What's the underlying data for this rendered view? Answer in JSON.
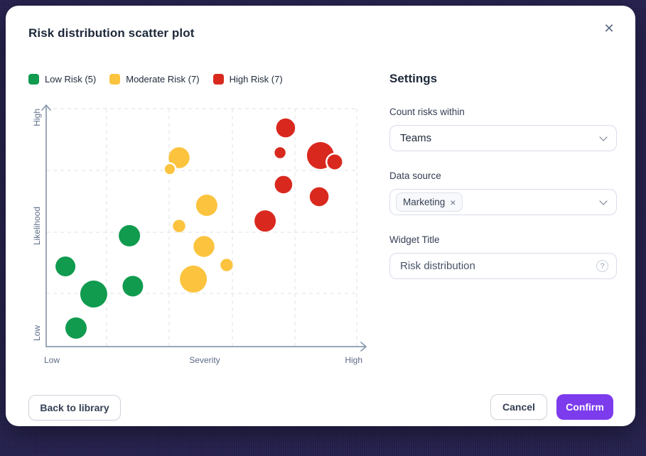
{
  "modal": {
    "title": "Risk distribution scatter plot",
    "close_icon": "✕"
  },
  "legend": [
    {
      "label": "Low Risk (5)",
      "color": "#109B4F"
    },
    {
      "label": "Moderate Risk (7)",
      "color": "#FBC33E"
    },
    {
      "label": "High Risk (7)",
      "color": "#D9291F"
    }
  ],
  "chart_data": {
    "type": "scatter",
    "title": "Risk distribution scatter plot",
    "xlabel": "Severity",
    "ylabel": "Likelihood",
    "x_axis": {
      "label": "Severity",
      "min_label": "Low",
      "max_label": "High",
      "range": [
        0,
        100
      ]
    },
    "y_axis": {
      "label": "Likelihood",
      "min_label": "Low",
      "max_label": "High",
      "range": [
        0,
        100
      ]
    },
    "grid": true,
    "legend_position": "top-left",
    "series": [
      {
        "name": "Low Risk",
        "count": 5,
        "color": "#109B4F",
        "points": [
          {
            "x": 26.8,
            "y": 46.6,
            "r": 15,
            "ring": false
          },
          {
            "x": 6.2,
            "y": 33.7,
            "r": 14,
            "ring": false
          },
          {
            "x": 15.3,
            "y": 22.1,
            "r": 19,
            "ring": false
          },
          {
            "x": 27.9,
            "y": 25.4,
            "r": 14.5,
            "ring": false
          },
          {
            "x": 9.6,
            "y": 7.8,
            "r": 15,
            "ring": false
          }
        ]
      },
      {
        "name": "Moderate Risk",
        "count": 7,
        "color": "#FBC33E",
        "points": [
          {
            "x": 42.8,
            "y": 79.4,
            "r": 14.7,
            "ring": false
          },
          {
            "x": 39.8,
            "y": 74.6,
            "r": 8.3,
            "ring": true
          },
          {
            "x": 51.7,
            "y": 59.4,
            "r": 15,
            "ring": false
          },
          {
            "x": 42.8,
            "y": 50.7,
            "r": 8.7,
            "ring": false
          },
          {
            "x": 50.8,
            "y": 42.1,
            "r": 14.7,
            "ring": false
          },
          {
            "x": 58.1,
            "y": 34.3,
            "r": 8.7,
            "ring": false
          },
          {
            "x": 47.4,
            "y": 28.4,
            "r": 19,
            "ring": false
          }
        ]
      },
      {
        "name": "High Risk",
        "count": 7,
        "color": "#D9291F",
        "points": [
          {
            "x": 77.1,
            "y": 91.9,
            "r": 13.3,
            "ring": false
          },
          {
            "x": 75.3,
            "y": 81.5,
            "r": 7.7,
            "ring": false
          },
          {
            "x": 88.3,
            "y": 80.3,
            "r": 19,
            "ring": false
          },
          {
            "x": 92.9,
            "y": 77.6,
            "r": 11.7,
            "ring": true
          },
          {
            "x": 76.4,
            "y": 68.1,
            "r": 12.3,
            "ring": false
          },
          {
            "x": 87.9,
            "y": 63.0,
            "r": 13.3,
            "ring": false
          },
          {
            "x": 70.5,
            "y": 52.8,
            "r": 15,
            "ring": false
          }
        ]
      }
    ]
  },
  "settings": {
    "heading": "Settings",
    "count_risks_within": {
      "label": "Count risks within",
      "value": "Teams"
    },
    "data_source": {
      "label": "Data source",
      "tags": [
        {
          "label": "Marketing",
          "remove_icon": "×"
        }
      ]
    },
    "widget_title": {
      "label": "Widget Title",
      "value": "Risk distribution",
      "help_icon": "?"
    }
  },
  "footer": {
    "back_label": "Back to library",
    "cancel_label": "Cancel",
    "confirm_label": "Confirm"
  },
  "colors": {
    "accent": "#7C3BEC",
    "backdrop": "#24204E",
    "axis": "#8C99B0",
    "gridline": "#E4E7EC",
    "text_primary": "#1D2939",
    "text_secondary": "#5E6C87"
  }
}
